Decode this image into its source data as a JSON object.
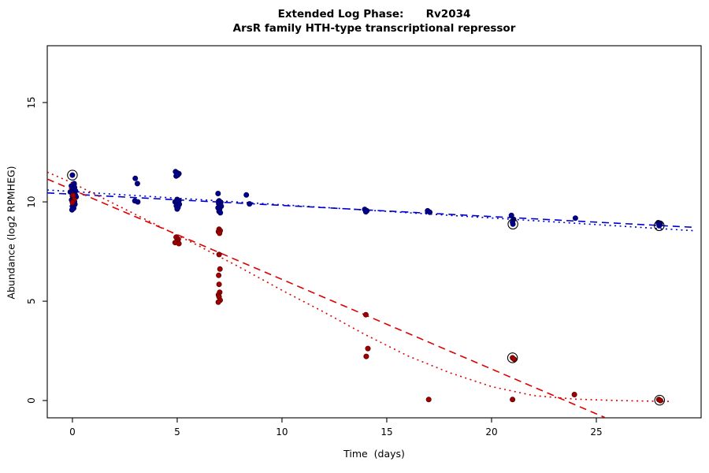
{
  "chart_data": {
    "type": "scatter",
    "title": "Extended Log Phase:      Rv2034",
    "subtitle": "ArsR family HTH-type transcriptional repressor",
    "xlabel": "Time  (days)",
    "ylabel": "Abundance  (log2 RPMHEG)",
    "xlim": [
      -1.2,
      30.0
    ],
    "ylim": [
      -0.87,
      17.86
    ],
    "x_ticks": [
      0,
      5,
      10,
      15,
      20,
      25
    ],
    "y_ticks": [
      0,
      5,
      10,
      15
    ],
    "grid": false,
    "legend": "none",
    "series": [
      {
        "name": "blue-condition-points",
        "color": "#00008B",
        "edge_color": "#000060",
        "points": [
          [
            0.0,
            11.35
          ],
          [
            0.08,
            10.92
          ],
          [
            -0.05,
            10.8
          ],
          [
            0.1,
            10.72
          ],
          [
            0.02,
            10.62
          ],
          [
            0.15,
            10.55
          ],
          [
            -0.1,
            10.5
          ],
          [
            0.05,
            10.45
          ],
          [
            0.12,
            10.38
          ],
          [
            0.0,
            10.3
          ],
          [
            0.18,
            10.25
          ],
          [
            0.05,
            10.18
          ],
          [
            -0.04,
            10.1
          ],
          [
            0.1,
            10.02
          ],
          [
            0.02,
            9.95
          ],
          [
            0.12,
            9.88
          ],
          [
            0.0,
            9.78
          ],
          [
            0.06,
            9.68
          ],
          [
            -0.02,
            9.6
          ],
          [
            3.0,
            11.18
          ],
          [
            3.1,
            10.92
          ],
          [
            2.98,
            10.05
          ],
          [
            3.12,
            10.0
          ],
          [
            4.92,
            11.52
          ],
          [
            5.0,
            11.46
          ],
          [
            5.08,
            11.42
          ],
          [
            5.02,
            11.35
          ],
          [
            4.95,
            11.3
          ],
          [
            5.0,
            10.12
          ],
          [
            5.08,
            10.06
          ],
          [
            4.9,
            10.0
          ],
          [
            5.0,
            9.95
          ],
          [
            5.1,
            9.88
          ],
          [
            4.96,
            9.8
          ],
          [
            5.04,
            9.72
          ],
          [
            5.0,
            9.64
          ],
          [
            6.95,
            10.42
          ],
          [
            7.0,
            10.05
          ],
          [
            7.08,
            9.98
          ],
          [
            6.98,
            9.92
          ],
          [
            7.03,
            9.85
          ],
          [
            7.1,
            9.78
          ],
          [
            6.95,
            9.7
          ],
          [
            7.02,
            9.62
          ],
          [
            7.0,
            9.52
          ],
          [
            7.06,
            9.45
          ],
          [
            8.3,
            10.35
          ],
          [
            8.45,
            9.9
          ],
          [
            13.95,
            9.62
          ],
          [
            14.05,
            9.55
          ],
          [
            14.0,
            9.5
          ],
          [
            16.95,
            9.55
          ],
          [
            17.05,
            9.48
          ],
          [
            20.95,
            9.32
          ],
          [
            21.05,
            9.12
          ],
          [
            21.0,
            8.98
          ],
          [
            21.02,
            8.88
          ],
          [
            24.0,
            9.18
          ],
          [
            27.95,
            8.95
          ],
          [
            28.05,
            8.88
          ],
          [
            28.0,
            8.8
          ]
        ]
      },
      {
        "name": "red-condition-points",
        "color": "#A00000",
        "edge_color": "#600000",
        "points": [
          [
            0.03,
            10.33
          ],
          [
            0.08,
            10.12
          ],
          [
            0.0,
            9.97
          ],
          [
            4.95,
            8.22
          ],
          [
            5.05,
            8.12
          ],
          [
            5.0,
            8.02
          ],
          [
            4.9,
            7.95
          ],
          [
            5.08,
            7.9
          ],
          [
            7.0,
            8.62
          ],
          [
            7.05,
            8.55
          ],
          [
            6.97,
            8.5
          ],
          [
            7.02,
            8.42
          ],
          [
            7.0,
            7.35
          ],
          [
            7.04,
            6.62
          ],
          [
            6.98,
            6.3
          ],
          [
            7.0,
            5.85
          ],
          [
            7.03,
            5.45
          ],
          [
            6.97,
            5.32
          ],
          [
            7.0,
            5.22
          ],
          [
            7.05,
            5.05
          ],
          [
            6.96,
            4.95
          ],
          [
            14.0,
            4.32
          ],
          [
            14.1,
            2.62
          ],
          [
            14.02,
            2.22
          ],
          [
            17.0,
            0.05
          ],
          [
            21.0,
            2.15
          ],
          [
            21.08,
            2.08
          ],
          [
            21.0,
            0.05
          ],
          [
            23.95,
            0.3
          ],
          [
            27.98,
            0.05
          ],
          [
            28.06,
            0.0
          ]
        ]
      }
    ],
    "circled_points": [
      [
        0.0,
        11.35
      ],
      [
        21.02,
        8.88
      ],
      [
        21.0,
        2.15
      ],
      [
        28.0,
        8.8
      ],
      [
        28.02,
        0.02
      ]
    ],
    "fit_lines": [
      {
        "name": "blue-dashed-fit",
        "color": "#0000CD",
        "style": "dashed",
        "points": [
          [
            -1.2,
            10.45
          ],
          [
            29.6,
            8.72
          ]
        ]
      },
      {
        "name": "blue-dotted-fit",
        "color": "#0000CD",
        "style": "dotted",
        "points": [
          [
            -1.2,
            10.6
          ],
          [
            29.6,
            8.55
          ]
        ]
      },
      {
        "name": "red-dashed-fit",
        "color": "#DD0000",
        "style": "dashed",
        "points": [
          [
            -1.2,
            11.15
          ],
          [
            25.4,
            -0.85
          ]
        ]
      },
      {
        "name": "red-dotted-fit",
        "color": "#DD0000",
        "style": "dotted",
        "points": [
          [
            -1.2,
            11.5
          ],
          [
            0,
            10.95
          ],
          [
            2,
            9.9
          ],
          [
            4,
            8.85
          ],
          [
            6,
            7.8
          ],
          [
            8,
            6.7
          ],
          [
            10,
            5.55
          ],
          [
            12,
            4.45
          ],
          [
            14,
            3.3
          ],
          [
            16,
            2.25
          ],
          [
            18,
            1.4
          ],
          [
            20,
            0.7
          ],
          [
            22,
            0.25
          ],
          [
            24,
            0.07
          ],
          [
            26,
            0.0
          ],
          [
            28.6,
            -0.05
          ]
        ]
      }
    ]
  }
}
